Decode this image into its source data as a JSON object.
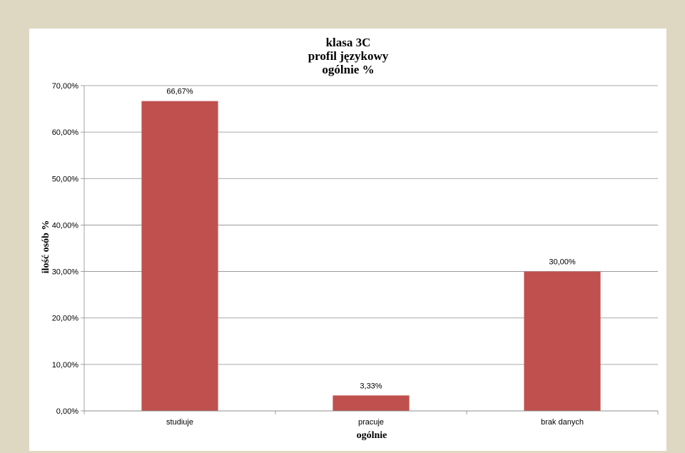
{
  "chart_data": {
    "type": "bar",
    "title": [
      "klasa 3C",
      "profil językowy",
      "ogólnie %"
    ],
    "categories": [
      "studiuje",
      "pracuje",
      "brak danych"
    ],
    "values": [
      66.67,
      3.33,
      30.0
    ],
    "data_labels": [
      "66,67%",
      "3,33%",
      "30,00%"
    ],
    "xlabel": "ogólnie",
    "ylabel": "ilość osób %",
    "ylim": [
      0,
      70
    ],
    "ytick_values": [
      0,
      10,
      20,
      30,
      40,
      50,
      60,
      70
    ],
    "ytick_labels": [
      "0,00%",
      "10,00%",
      "20,00%",
      "30,00%",
      "40,00%",
      "50,00%",
      "60,00%",
      "70,00%"
    ],
    "grid": true,
    "legend": "none",
    "bar_color": "#c0504d",
    "grid_color": "#8c8c8c"
  }
}
